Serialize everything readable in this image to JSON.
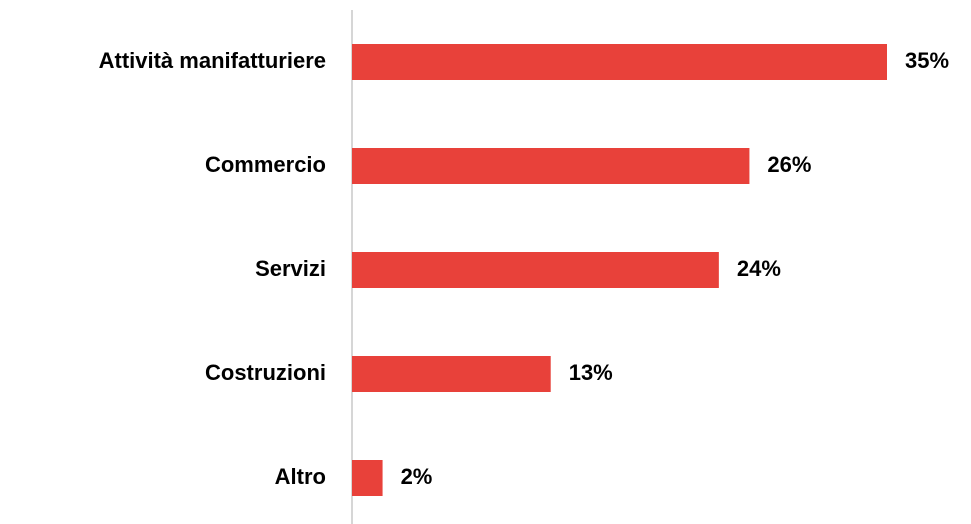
{
  "chart_data": {
    "type": "bar",
    "orientation": "horizontal",
    "categories": [
      "Attività manifatturiere",
      "Commercio",
      "Servizi",
      "Costruzioni",
      "Altro"
    ],
    "values": [
      35,
      26,
      24,
      13,
      2
    ],
    "value_labels": [
      "35%",
      "26%",
      "24%",
      "13%",
      "2%"
    ],
    "color": "#e8413a"
  }
}
